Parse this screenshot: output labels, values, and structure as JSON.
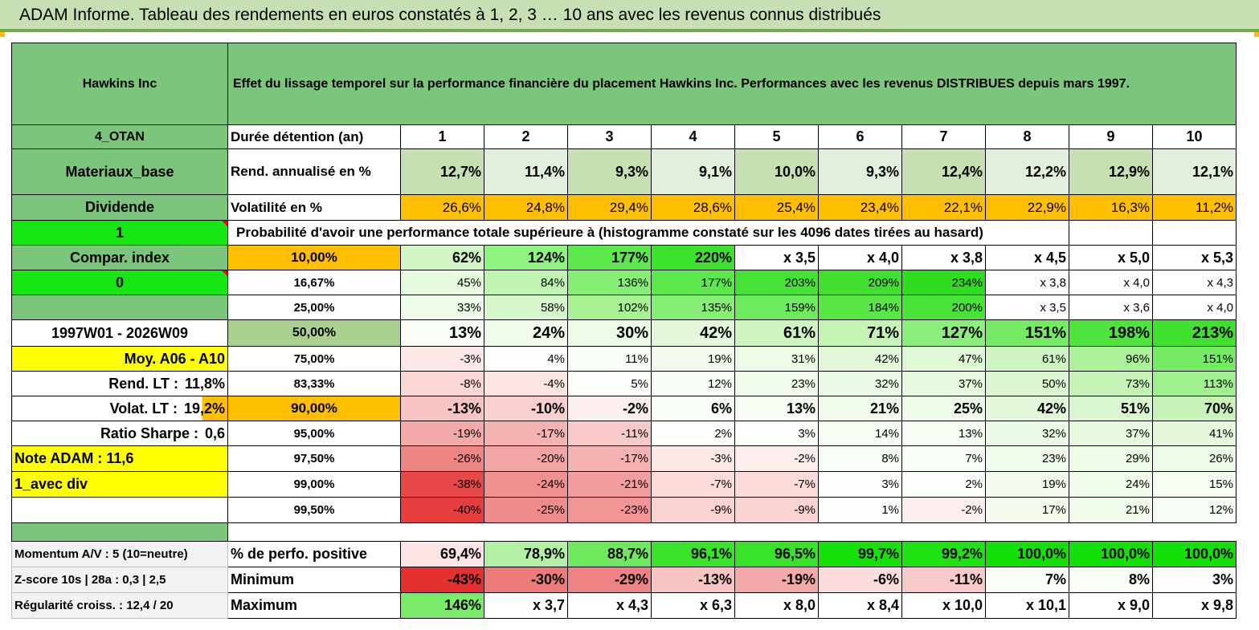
{
  "title": "ADAM Informe. Tableau des rendements en euros constatés à 1, 2, 3 … 10 ans avec les revenus connus distribués",
  "company": "Hawkins Inc",
  "description": "Effet du lissage temporel sur la performance financière du placement Hawkins Inc. Performances avec les revenus DISTRIBUES depuis mars 1997.",
  "left": {
    "code": "4_OTAN",
    "sector": "Materiaux_base",
    "dividend": "Dividende",
    "flag1": "1",
    "compar": "Compar. index",
    "flag0": "0",
    "period": "1997W01 - 2026W09",
    "moy": "Moy. A06 - A10",
    "rend_lt_label": "Rend. LT :",
    "rend_lt_value": "11,8%",
    "volat_lt_label": "Volat. LT :",
    "volat_lt_value": "19,2%",
    "sharpe_label": "Ratio Sharpe :",
    "sharpe_value": "0,6",
    "note": "Note ADAM : 11,6",
    "avec_div": "1_avec div",
    "momentum": "Momentum A/V : 5 (10=neutre)",
    "zscore": "Z-score 10s | 28a : 0,3 | 2,5",
    "regularite": "Régularité croiss. : 12,4 / 20"
  },
  "duree_label": "Durée détention (an)",
  "years": [
    "1",
    "2",
    "3",
    "4",
    "5",
    "6",
    "7",
    "8",
    "9",
    "10"
  ],
  "rend_label": "Rend. annualisé en %",
  "rend": [
    "12,7%",
    "11,4%",
    "9,3%",
    "9,1%",
    "10,0%",
    "9,3%",
    "12,4%",
    "12,2%",
    "12,9%",
    "12,1%"
  ],
  "vol_label": "Volatilité en %",
  "vol": [
    "26,6%",
    "24,8%",
    "29,4%",
    "28,6%",
    "25,4%",
    "23,4%",
    "22,1%",
    "22,9%",
    "16,3%",
    "11,2%"
  ],
  "prob_label": "Probabilité d'avoir une performance totale supérieure à (histogramme constaté sur les 4096 dates tirées au hasard)",
  "prob_rows": [
    {
      "pct": "10,00%",
      "vals": [
        "62%",
        "124%",
        "177%",
        "220%",
        "x 3,5",
        "x 4,0",
        "x 3,8",
        "x 4,5",
        "x 5,0",
        "x 5,3"
      ],
      "colors": [
        "#d2f5c5",
        "#8ef27e",
        "#5ce84d",
        "#3de22d",
        "#ffffff",
        "#ffffff",
        "#ffffff",
        "#ffffff",
        "#ffffff",
        "#ffffff"
      ]
    },
    {
      "pct": "16,67%",
      "vals": [
        "45%",
        "84%",
        "136%",
        "177%",
        "203%",
        "209%",
        "234%",
        "x 3,8",
        "x 4,0",
        "x 4,3"
      ],
      "colors": [
        "#e5f9dd",
        "#c0f4b2",
        "#85ee73",
        "#5ce84d",
        "#45e135",
        "#42df30",
        "#30dc20",
        "#ffffff",
        "#ffffff",
        "#ffffff"
      ]
    },
    {
      "pct": "25,00%",
      "vals": [
        "33%",
        "58%",
        "102%",
        "135%",
        "159%",
        "184%",
        "200%",
        "x 3,5",
        "x 3,6",
        "x 4,0"
      ],
      "colors": [
        "#eefbe8",
        "#d6f7cb",
        "#a8f294",
        "#86ee74",
        "#6eea5d",
        "#57e646",
        "#48e238",
        "#ffffff",
        "#ffffff",
        "#ffffff"
      ]
    },
    {
      "pct": "50,00%",
      "vals": [
        "13%",
        "24%",
        "30%",
        "42%",
        "61%",
        "71%",
        "127%",
        "151%",
        "198%",
        "213%"
      ],
      "colors": [
        "#f8fdf5",
        "#f1fbec",
        "#ecfae6",
        "#e3f8da",
        "#cef5c1",
        "#c5f3b6",
        "#8cef7b",
        "#74eb63",
        "#4ee43d",
        "#40e02f"
      ]
    },
    {
      "pct": "75,00%",
      "vals": [
        "-3%",
        "4%",
        "11%",
        "19%",
        "31%",
        "42%",
        "47%",
        "61%",
        "96%",
        "151%"
      ],
      "colors": [
        "#fde8e8",
        "#fbfefa",
        "#f8fdf5",
        "#f3fbef",
        "#ecfae6",
        "#e3f8da",
        "#dff8d6",
        "#cef5c1",
        "#acf29a",
        "#74eb63"
      ]
    },
    {
      "pct": "83,33%",
      "vals": [
        "-8%",
        "-4%",
        "5%",
        "12%",
        "23%",
        "32%",
        "37%",
        "50%",
        "73%",
        "113%"
      ],
      "colors": [
        "#fad6d6",
        "#fde4e4",
        "#fbfefa",
        "#f7fdf4",
        "#f1fbec",
        "#ebfae4",
        "#e7f9df",
        "#daf7cf",
        "#c4f3b5",
        "#9ef08c"
      ]
    },
    {
      "pct": "90,00%",
      "vals": [
        "-13%",
        "-10%",
        "-2%",
        "6%",
        "13%",
        "21%",
        "25%",
        "42%",
        "51%",
        "70%"
      ],
      "colors": [
        "#f7c3c3",
        "#f9cfcf",
        "#fdeeee",
        "#fafef8",
        "#f6fcf2",
        "#f1fbec",
        "#eefbe8",
        "#e3f8da",
        "#d9f6ce",
        "#c7f3b8"
      ]
    },
    {
      "pct": "95,00%",
      "vals": [
        "-19%",
        "-17%",
        "-11%",
        "2%",
        "3%",
        "14%",
        "13%",
        "32%",
        "37%",
        "41%"
      ],
      "colors": [
        "#f4a9a9",
        "#f5b2b2",
        "#f8c9c9",
        "#fcfefb",
        "#fbfefa",
        "#f6fcf2",
        "#f6fcf2",
        "#ebfae4",
        "#e7f9df",
        "#e4f8dc"
      ]
    },
    {
      "pct": "97,50%",
      "vals": [
        "-26%",
        "-20%",
        "-17%",
        "-3%",
        "-2%",
        "8%",
        "7%",
        "23%",
        "29%",
        "26%"
      ],
      "colors": [
        "#ef8686",
        "#f3a4a4",
        "#f5b2b2",
        "#fde8e8",
        "#fdeeee",
        "#f9fdf7",
        "#fafef8",
        "#f1fbec",
        "#edfae6",
        "#effbe9"
      ]
    },
    {
      "pct": "99,00%",
      "vals": [
        "-38%",
        "-24%",
        "-21%",
        "-7%",
        "-7%",
        "3%",
        "2%",
        "19%",
        "24%",
        "15%"
      ],
      "colors": [
        "#e84848",
        "#f09090",
        "#f29e9e",
        "#fbdada",
        "#fbdada",
        "#fbfefa",
        "#fcfefb",
        "#f3fbef",
        "#f0fbeb",
        "#f5fcf1"
      ]
    },
    {
      "pct": "99,50%",
      "vals": [
        "-40%",
        "-25%",
        "-23%",
        "-9%",
        "-9%",
        "1%",
        "-2%",
        "17%",
        "21%",
        "12%"
      ],
      "colors": [
        "#e63e3e",
        "#f08b8b",
        "#f19595",
        "#fad2d2",
        "#fad2d2",
        "#fdfffc",
        "#fdeeee",
        "#f4fcf0",
        "#f1fbec",
        "#f7fdf4"
      ]
    }
  ],
  "pos_label": "% de perfo. positive",
  "pos": [
    "69,4%",
    "78,9%",
    "88,7%",
    "96,1%",
    "96,5%",
    "99,7%",
    "99,2%",
    "100,0%",
    "100,0%",
    "100,0%"
  ],
  "pos_colors": [
    "#fce4e4",
    "#b4f0a4",
    "#70e85e",
    "#3ae32a",
    "#38e228",
    "#16e10a",
    "#1ee212",
    "#13e006",
    "#13e006",
    "#13e006"
  ],
  "min_label": "Minimum",
  "min": [
    "-43%",
    "-30%",
    "-29%",
    "-13%",
    "-19%",
    "-6%",
    "-11%",
    "7%",
    "8%",
    "3%"
  ],
  "min_colors": [
    "#e53030",
    "#ee7a7a",
    "#ef8282",
    "#f8c3c3",
    "#f4a9a9",
    "#fcdcdc",
    "#f8c9c9",
    "#fafef8",
    "#f9fdf7",
    "#fbfefa"
  ],
  "max_label": "Maximum",
  "max": [
    "146%",
    "x 3,7",
    "x 4,3",
    "x 6,3",
    "x 8,0",
    "x 8,4",
    "x 10,0",
    "x 10,1",
    "x 9,0",
    "x 9,8"
  ],
  "max_colors": [
    "#7aec69",
    "#ffffff",
    "#ffffff",
    "#ffffff",
    "#ffffff",
    "#ffffff",
    "#ffffff",
    "#ffffff",
    "#ffffff",
    "#ffffff"
  ]
}
